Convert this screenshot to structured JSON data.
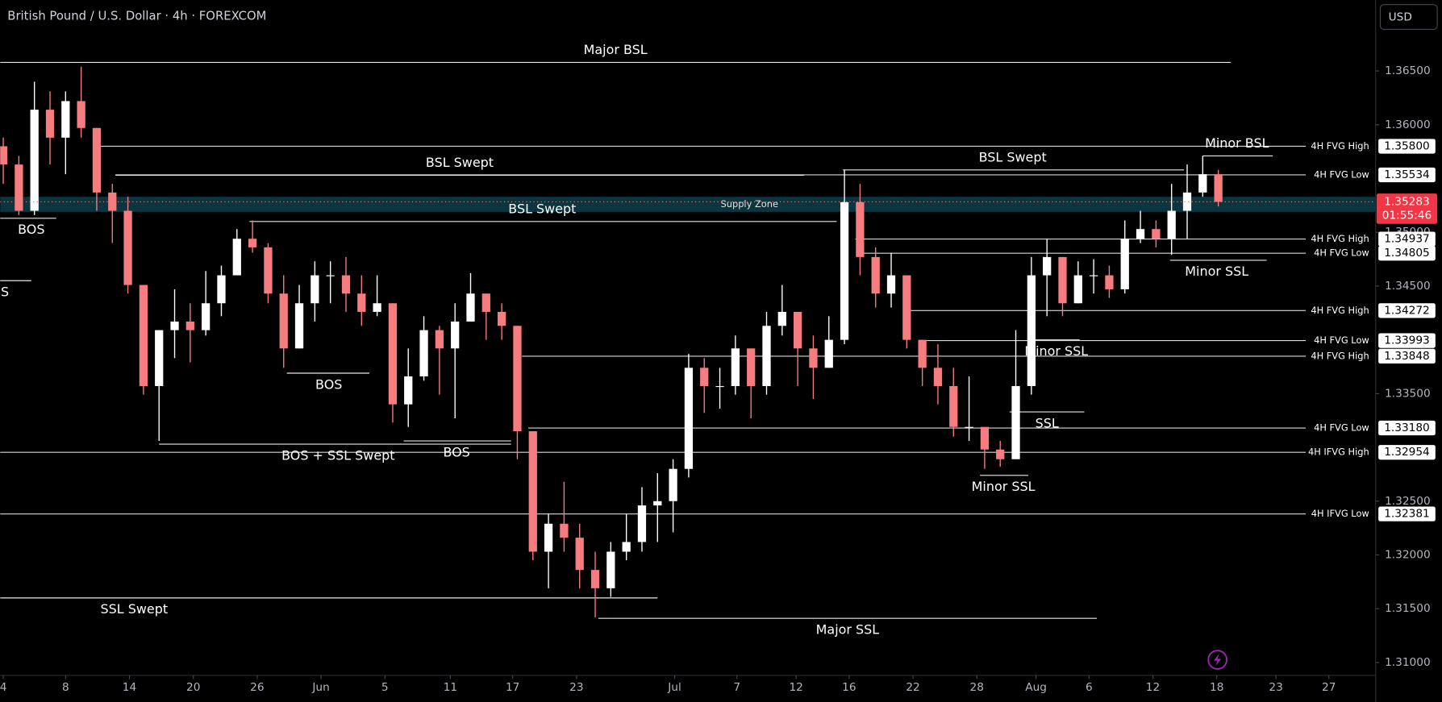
{
  "header": {
    "title": "British Pound / U.S. Dollar · 4h · FOREXCOM",
    "currency": "USD"
  },
  "chart_data": {
    "type": "candlestick",
    "up_color": "#ffffff",
    "down_color": "#f77c80",
    "xlim": [
      -0.2,
      88.1
    ],
    "ylim": [
      1.3088,
      1.3716
    ],
    "yticks": [
      {
        "value": 1.365,
        "label": "1.36500"
      },
      {
        "value": 1.36,
        "label": "1.36000"
      },
      {
        "value": 1.35,
        "label": "1.35000"
      },
      {
        "value": 1.345,
        "label": "1.34500"
      },
      {
        "value": 1.335,
        "label": "1.33500"
      },
      {
        "value": 1.325,
        "label": "1.32500"
      },
      {
        "value": 1.32,
        "label": "1.32000"
      },
      {
        "value": 1.315,
        "label": "1.31500"
      },
      {
        "value": 1.31,
        "label": "1.31000"
      }
    ],
    "xticks": [
      {
        "value": 0,
        "label": "4"
      },
      {
        "value": 4.0,
        "label": "8"
      },
      {
        "value": 8.1,
        "label": "14"
      },
      {
        "value": 12.2,
        "label": "20"
      },
      {
        "value": 16.3,
        "label": "26"
      },
      {
        "value": 20.4,
        "label": "Jun"
      },
      {
        "value": 24.5,
        "label": "5"
      },
      {
        "value": 28.7,
        "label": "11"
      },
      {
        "value": 32.7,
        "label": "17"
      },
      {
        "value": 36.8,
        "label": "23"
      },
      {
        "value": 43.1,
        "label": "Jul"
      },
      {
        "value": 47.1,
        "label": "7"
      },
      {
        "value": 50.9,
        "label": "12"
      },
      {
        "value": 54.3,
        "label": "16"
      },
      {
        "value": 58.4,
        "label": "22"
      },
      {
        "value": 62.5,
        "label": "28"
      },
      {
        "value": 66.3,
        "label": "Aug"
      },
      {
        "value": 69.7,
        "label": "6"
      },
      {
        "value": 73.8,
        "label": "12"
      },
      {
        "value": 77.9,
        "label": "18"
      },
      {
        "value": 81.7,
        "label": "23"
      },
      {
        "value": 85.1,
        "label": "27"
      }
    ],
    "open": [
      1.358,
      1.3563,
      1.352,
      1.3614,
      1.3588,
      1.3622,
      1.3597,
      1.3537,
      1.352,
      1.3451,
      1.3357,
      1.3409,
      1.3417,
      1.3409,
      1.3434,
      1.346,
      1.3494,
      1.3486,
      1.3443,
      1.3392,
      1.3434,
      1.346,
      1.346,
      1.3443,
      1.3426,
      1.3434,
      1.334,
      1.3366,
      1.3409,
      1.3392,
      1.3417,
      1.3443,
      1.3426,
      1.3413,
      1.3315,
      1.3203,
      1.3229,
      1.3216,
      1.3186,
      1.3169,
      1.3203,
      1.3212,
      1.3246,
      1.325,
      1.328,
      1.3374,
      1.3357,
      1.3357,
      1.3392,
      1.3357,
      1.3413,
      1.3426,
      1.3392,
      1.3374,
      1.34,
      1.3528,
      1.3477,
      1.3443,
      1.346,
      1.34,
      1.3374,
      1.3357,
      1.3319,
      1.3319,
      1.3298,
      1.3289,
      1.3357,
      1.346,
      1.3477,
      1.3434,
      1.346,
      1.346,
      1.3447,
      1.3494,
      1.3503,
      1.3494,
      1.352,
      1.3537,
      1.3554
    ],
    "high": [
      1.3588,
      1.3571,
      1.364,
      1.3631,
      1.3631,
      1.3654,
      1.3597,
      1.3545,
      1.3533,
      1.3451,
      1.3409,
      1.3447,
      1.3434,
      1.3464,
      1.3469,
      1.3503,
      1.3511,
      1.349,
      1.346,
      1.3451,
      1.3473,
      1.3473,
      1.3477,
      1.346,
      1.346,
      1.3434,
      1.3392,
      1.3422,
      1.3413,
      1.3434,
      1.3462,
      1.3443,
      1.3434,
      1.3413,
      1.3315,
      1.3238,
      1.3268,
      1.3229,
      1.3203,
      1.3212,
      1.3238,
      1.3263,
      1.3276,
      1.3289,
      1.3387,
      1.3383,
      1.3374,
      1.3404,
      1.3392,
      1.3426,
      1.3451,
      1.3426,
      1.3404,
      1.3422,
      1.3558,
      1.3545,
      1.3486,
      1.3481,
      1.346,
      1.34,
      1.3396,
      1.3374,
      1.3366,
      1.3319,
      1.3306,
      1.3409,
      1.3477,
      1.3494,
      1.3477,
      1.3473,
      1.3475,
      1.3469,
      1.3511,
      1.352,
      1.3511,
      1.3545,
      1.3563,
      1.3571,
      1.3558
    ],
    "low": [
      1.3545,
      1.3516,
      1.3516,
      1.3563,
      1.3554,
      1.3588,
      1.352,
      1.349,
      1.3443,
      1.3349,
      1.3306,
      1.3383,
      1.3379,
      1.3404,
      1.3422,
      1.346,
      1.3481,
      1.3434,
      1.3374,
      1.3392,
      1.3417,
      1.3434,
      1.3426,
      1.3413,
      1.3422,
      1.3323,
      1.3319,
      1.3362,
      1.3349,
      1.3327,
      1.3417,
      1.34,
      1.34,
      1.3289,
      1.3195,
      1.3169,
      1.3203,
      1.3169,
      1.3142,
      1.3161,
      1.3195,
      1.3203,
      1.3212,
      1.3221,
      1.3272,
      1.3332,
      1.3336,
      1.3349,
      1.3327,
      1.3349,
      1.3404,
      1.3357,
      1.3345,
      1.3374,
      1.3396,
      1.346,
      1.343,
      1.343,
      1.3392,
      1.3357,
      1.334,
      1.331,
      1.3306,
      1.328,
      1.3282,
      1.3289,
      1.3349,
      1.3422,
      1.3422,
      1.3434,
      1.3443,
      1.3439,
      1.3443,
      1.349,
      1.3486,
      1.3479,
      1.3494,
      1.3533,
      1.3524
    ],
    "close": [
      1.3563,
      1.352,
      1.3614,
      1.3588,
      1.3622,
      1.3597,
      1.3537,
      1.352,
      1.3451,
      1.3357,
      1.3409,
      1.3417,
      1.3409,
      1.3434,
      1.346,
      1.3494,
      1.3486,
      1.3443,
      1.3392,
      1.3434,
      1.346,
      1.346,
      1.3443,
      1.3426,
      1.3434,
      1.334,
      1.3366,
      1.3409,
      1.3392,
      1.3417,
      1.3443,
      1.3426,
      1.3413,
      1.3315,
      1.3203,
      1.3229,
      1.3216,
      1.3186,
      1.3169,
      1.3203,
      1.3212,
      1.3246,
      1.325,
      1.328,
      1.3374,
      1.3357,
      1.3357,
      1.3392,
      1.3357,
      1.3413,
      1.3426,
      1.3392,
      1.3374,
      1.34,
      1.3528,
      1.3477,
      1.3443,
      1.346,
      1.34,
      1.3374,
      1.3357,
      1.3319,
      1.3319,
      1.3298,
      1.3289,
      1.3357,
      1.346,
      1.3477,
      1.3434,
      1.346,
      1.346,
      1.3447,
      1.3494,
      1.3503,
      1.3494,
      1.352,
      1.3537,
      1.3554,
      1.35283
    ],
    "supply_zone": {
      "label": "Supply Zone",
      "top": 1.3533,
      "bottom": 1.3519,
      "label_x": 47.9
    },
    "last_price": {
      "value": 1.35283,
      "label": "1.35283"
    },
    "countdown": "01:55:46",
    "levels": [
      {
        "name": "4H FVG High",
        "price": {
          "value": 1.358,
          "label": "1.35800"
        },
        "x0": 6.2
      },
      {
        "name": "4H FVG Low",
        "price": {
          "value": 1.35534,
          "label": "1.35534"
        },
        "x0": 7.2
      },
      {
        "name": "4H FVG High",
        "price": {
          "value": 1.34937,
          "label": "1.34937"
        },
        "x0": 54.7
      },
      {
        "name": "4H FVG Low",
        "price": {
          "value": 1.34805,
          "label": "1.34805"
        },
        "x0": 55.2
      },
      {
        "name": "4H FVG High",
        "price": {
          "value": 1.34272,
          "label": "1.34272"
        },
        "x0": 57.9
      },
      {
        "name": "4H FVG Low",
        "price": {
          "value": 1.33993,
          "label": "1.33993"
        },
        "x0": 58.8
      },
      {
        "name": "4H FVG High",
        "price": {
          "value": 1.33848,
          "label": "1.33848"
        },
        "x0": 33.3
      },
      {
        "name": "4H FVG Low",
        "price": {
          "value": 1.3318,
          "label": "1.33180"
        },
        "x0": 33.7
      },
      {
        "name": "4H IFVG High",
        "price": {
          "value": 1.32954,
          "label": "1.32954"
        },
        "x0": -0.2
      },
      {
        "name": "4H IFVG Low",
        "price": {
          "value": 1.32381,
          "label": "1.32381"
        },
        "x0": -0.2
      }
    ],
    "annotations": [
      {
        "label": "Major BSL",
        "price": 1.3658,
        "x0": -0.2,
        "x1": 78.8,
        "label_x": 39.3,
        "side": "above"
      },
      {
        "label": "BSL Swept",
        "price": 1.3553,
        "x0": 7.2,
        "x1": 51.4,
        "label_x": 29.3,
        "side": "above"
      },
      {
        "label": "BSL Swept",
        "price": 1.3558,
        "x0": 53.9,
        "x1": 75.8,
        "label_x": 64.8,
        "side": "above"
      },
      {
        "label": "BSL Swept",
        "price": 1.351,
        "x0": 15.8,
        "x1": 53.5,
        "label_x": 34.6,
        "side": "above"
      },
      {
        "label": "Minor BSL",
        "price": 1.3571,
        "x0": 77.0,
        "x1": 81.5,
        "label_x": 79.2,
        "side": "above"
      },
      {
        "label": "BOS",
        "price": 1.3513,
        "x0": -0.2,
        "x1": 3.4,
        "label_x": 1.8,
        "side": "below"
      },
      {
        "label": "BOS",
        "price": 1.3455,
        "x0": -1.8,
        "x1": 1.8,
        "label_x": -0.5,
        "side": "below"
      },
      {
        "label": "BOS",
        "price": 1.3369,
        "x0": 18.2,
        "x1": 23.5,
        "label_x": 20.9,
        "side": "below"
      },
      {
        "label": "BOS + SSL Swept",
        "price": 1.3303,
        "x0": 10.0,
        "x1": 32.6,
        "label_x": 21.5,
        "side": "below"
      },
      {
        "label": "BOS",
        "price": 1.3306,
        "x0": 25.7,
        "x1": 32.6,
        "label_x": 29.1,
        "side": "below"
      },
      {
        "label": "SSL Swept",
        "price": 1.316,
        "x0": -0.2,
        "x1": 42.0,
        "label_x": 8.4,
        "side": "below"
      },
      {
        "label": "Major SSL",
        "price": 1.3141,
        "x0": 38.2,
        "x1": 70.2,
        "label_x": 54.2,
        "side": "below"
      },
      {
        "label": "Minor SSL",
        "price": 1.3474,
        "x0": 74.9,
        "x1": 81.1,
        "label_x": 77.9,
        "side": "below"
      },
      {
        "label": "Minor SSL",
        "price": 1.34,
        "x0": 65.9,
        "x1": 69.1,
        "label_x": 67.6,
        "side": "below"
      },
      {
        "label": "SSL",
        "price": 1.3333,
        "x0": 64.6,
        "x1": 69.4,
        "label_x": 67.0,
        "side": "below"
      },
      {
        "label": "Minor SSL",
        "price": 1.3274,
        "x0": 62.7,
        "x1": 65.8,
        "label_x": 64.2,
        "side": "below"
      }
    ]
  }
}
